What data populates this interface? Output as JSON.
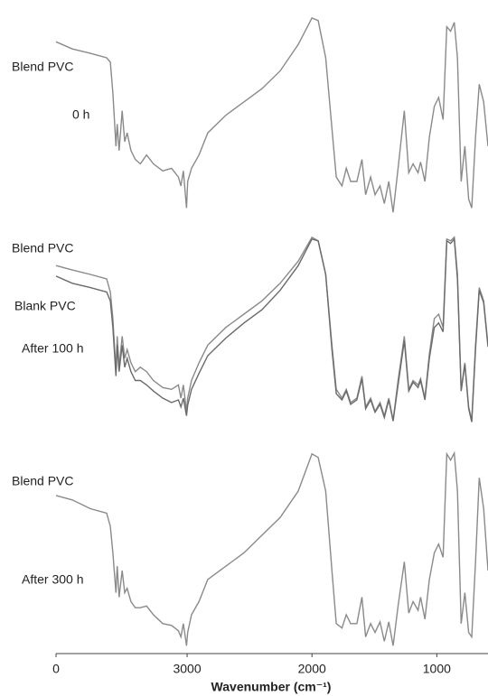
{
  "chart_data": [
    {
      "type": "line",
      "annotation": "0 h",
      "x": [
        4050,
        3920,
        3775,
        3645,
        3615,
        3595,
        3570,
        3560,
        3545,
        3520,
        3500,
        3480,
        3450,
        3415,
        3375,
        3325,
        3270,
        3195,
        3125,
        3070,
        3050,
        3030,
        3005,
        2995,
        2965,
        2905,
        2835,
        2690,
        2545,
        2400,
        2255,
        2110,
        2000,
        1950,
        1890,
        1840,
        1805,
        1760,
        1725,
        1690,
        1640,
        1600,
        1570,
        1530,
        1495,
        1455,
        1420,
        1385,
        1350,
        1310,
        1260,
        1225,
        1190,
        1150,
        1130,
        1095,
        1060,
        1020,
        985,
        950,
        920,
        890,
        860,
        835,
        805,
        775,
        745,
        720,
        690,
        660,
        625,
        590
      ],
      "xlim": [
        4050,
        590
      ],
      "ylim": [
        0,
        240
      ],
      "series": [
        {
          "name": "Blend PVC",
          "color": "#8a8a8a",
          "values": [
            208,
            200,
            195,
            190,
            185,
            150,
            90,
            115,
            85,
            130,
            95,
            105,
            85,
            75,
            70,
            80,
            70,
            62,
            65,
            55,
            45,
            62,
            20,
            50,
            65,
            80,
            105,
            125,
            140,
            155,
            175,
            205,
            235,
            232,
            190,
            110,
            55,
            45,
            65,
            50,
            50,
            75,
            35,
            55,
            35,
            45,
            25,
            50,
            15,
            65,
            130,
            60,
            70,
            60,
            72,
            50,
            100,
            135,
            145,
            120,
            225,
            220,
            230,
            190,
            50,
            90,
            30,
            20,
            100,
            160,
            140,
            90
          ]
        }
      ]
    },
    {
      "type": "line",
      "annotation": "After 100 h",
      "x": [
        4050,
        3920,
        3775,
        3645,
        3615,
        3595,
        3570,
        3560,
        3545,
        3520,
        3500,
        3480,
        3450,
        3415,
        3375,
        3325,
        3270,
        3195,
        3125,
        3070,
        3050,
        3030,
        3005,
        2995,
        2965,
        2905,
        2835,
        2690,
        2545,
        2400,
        2255,
        2110,
        2000,
        1950,
        1890,
        1840,
        1805,
        1760,
        1725,
        1690,
        1640,
        1600,
        1570,
        1530,
        1495,
        1455,
        1420,
        1385,
        1350,
        1310,
        1260,
        1225,
        1190,
        1150,
        1130,
        1095,
        1060,
        1020,
        985,
        950,
        920,
        890,
        860,
        835,
        805,
        775,
        745,
        720,
        690,
        660,
        625,
        590
      ],
      "xlim": [
        4050,
        590
      ],
      "ylim": [
        0,
        240
      ],
      "series": [
        {
          "name": "Blend PVC",
          "color": "#8a8a8a",
          "values": [
            200,
            195,
            190,
            185,
            170,
            140,
            80,
            120,
            85,
            120,
            95,
            105,
            90,
            80,
            85,
            80,
            70,
            62,
            60,
            65,
            50,
            65,
            35,
            50,
            70,
            90,
            110,
            130,
            145,
            160,
            180,
            205,
            232,
            228,
            190,
            110,
            60,
            50,
            60,
            45,
            50,
            75,
            40,
            50,
            35,
            45,
            30,
            50,
            25,
            70,
            120,
            60,
            70,
            65,
            72,
            50,
            100,
            140,
            145,
            130,
            230,
            228,
            232,
            190,
            60,
            90,
            40,
            25,
            110,
            175,
            160,
            110
          ]
        },
        {
          "name": "Blank PVC",
          "color": "#6a6a6a",
          "values": [
            188,
            180,
            175,
            170,
            160,
            130,
            75,
            110,
            80,
            110,
            85,
            95,
            80,
            70,
            70,
            65,
            58,
            50,
            45,
            48,
            40,
            50,
            30,
            42,
            60,
            78,
            98,
            118,
            135,
            150,
            172,
            200,
            230,
            228,
            190,
            105,
            55,
            48,
            58,
            43,
            48,
            72,
            38,
            48,
            34,
            43,
            28,
            48,
            24,
            65,
            115,
            58,
            68,
            62,
            70,
            48,
            95,
            130,
            135,
            125,
            228,
            225,
            230,
            185,
            58,
            88,
            38,
            23,
            105,
            172,
            158,
            108
          ]
        }
      ]
    },
    {
      "type": "line",
      "annotation": "After 300 h",
      "x": [
        4050,
        3920,
        3775,
        3645,
        3615,
        3595,
        3570,
        3560,
        3545,
        3520,
        3500,
        3480,
        3450,
        3415,
        3375,
        3325,
        3270,
        3195,
        3125,
        3070,
        3050,
        3030,
        3005,
        2995,
        2965,
        2905,
        2835,
        2690,
        2545,
        2400,
        2255,
        2110,
        2000,
        1950,
        1890,
        1840,
        1805,
        1760,
        1725,
        1690,
        1640,
        1600,
        1570,
        1530,
        1495,
        1455,
        1420,
        1385,
        1350,
        1310,
        1260,
        1225,
        1190,
        1150,
        1130,
        1095,
        1060,
        1020,
        985,
        950,
        920,
        890,
        860,
        835,
        805,
        775,
        745,
        720,
        690,
        660,
        625,
        590
      ],
      "xlim": [
        4050,
        590
      ],
      "ylim": [
        0,
        240
      ],
      "xticks": [
        {
          "value": 4050,
          "label": "0"
        },
        3000,
        2000,
        1000
      ],
      "xlabel": "Wavenumber (cm⁻¹)",
      "series": [
        {
          "name": "Blend PVC",
          "color": "#8a8a8a",
          "values": [
            185,
            180,
            170,
            165,
            150,
            120,
            75,
            105,
            70,
            100,
            75,
            80,
            65,
            58,
            58,
            60,
            50,
            40,
            38,
            32,
            25,
            40,
            15,
            30,
            50,
            65,
            90,
            105,
            120,
            140,
            160,
            190,
            232,
            228,
            190,
            100,
            40,
            35,
            50,
            40,
            40,
            70,
            25,
            40,
            30,
            42,
            20,
            42,
            15,
            60,
            110,
            52,
            65,
            55,
            70,
            45,
            90,
            120,
            130,
            115,
            232,
            225,
            233,
            190,
            40,
            75,
            30,
            25,
            110,
            205,
            170,
            100
          ]
        }
      ]
    }
  ]
}
